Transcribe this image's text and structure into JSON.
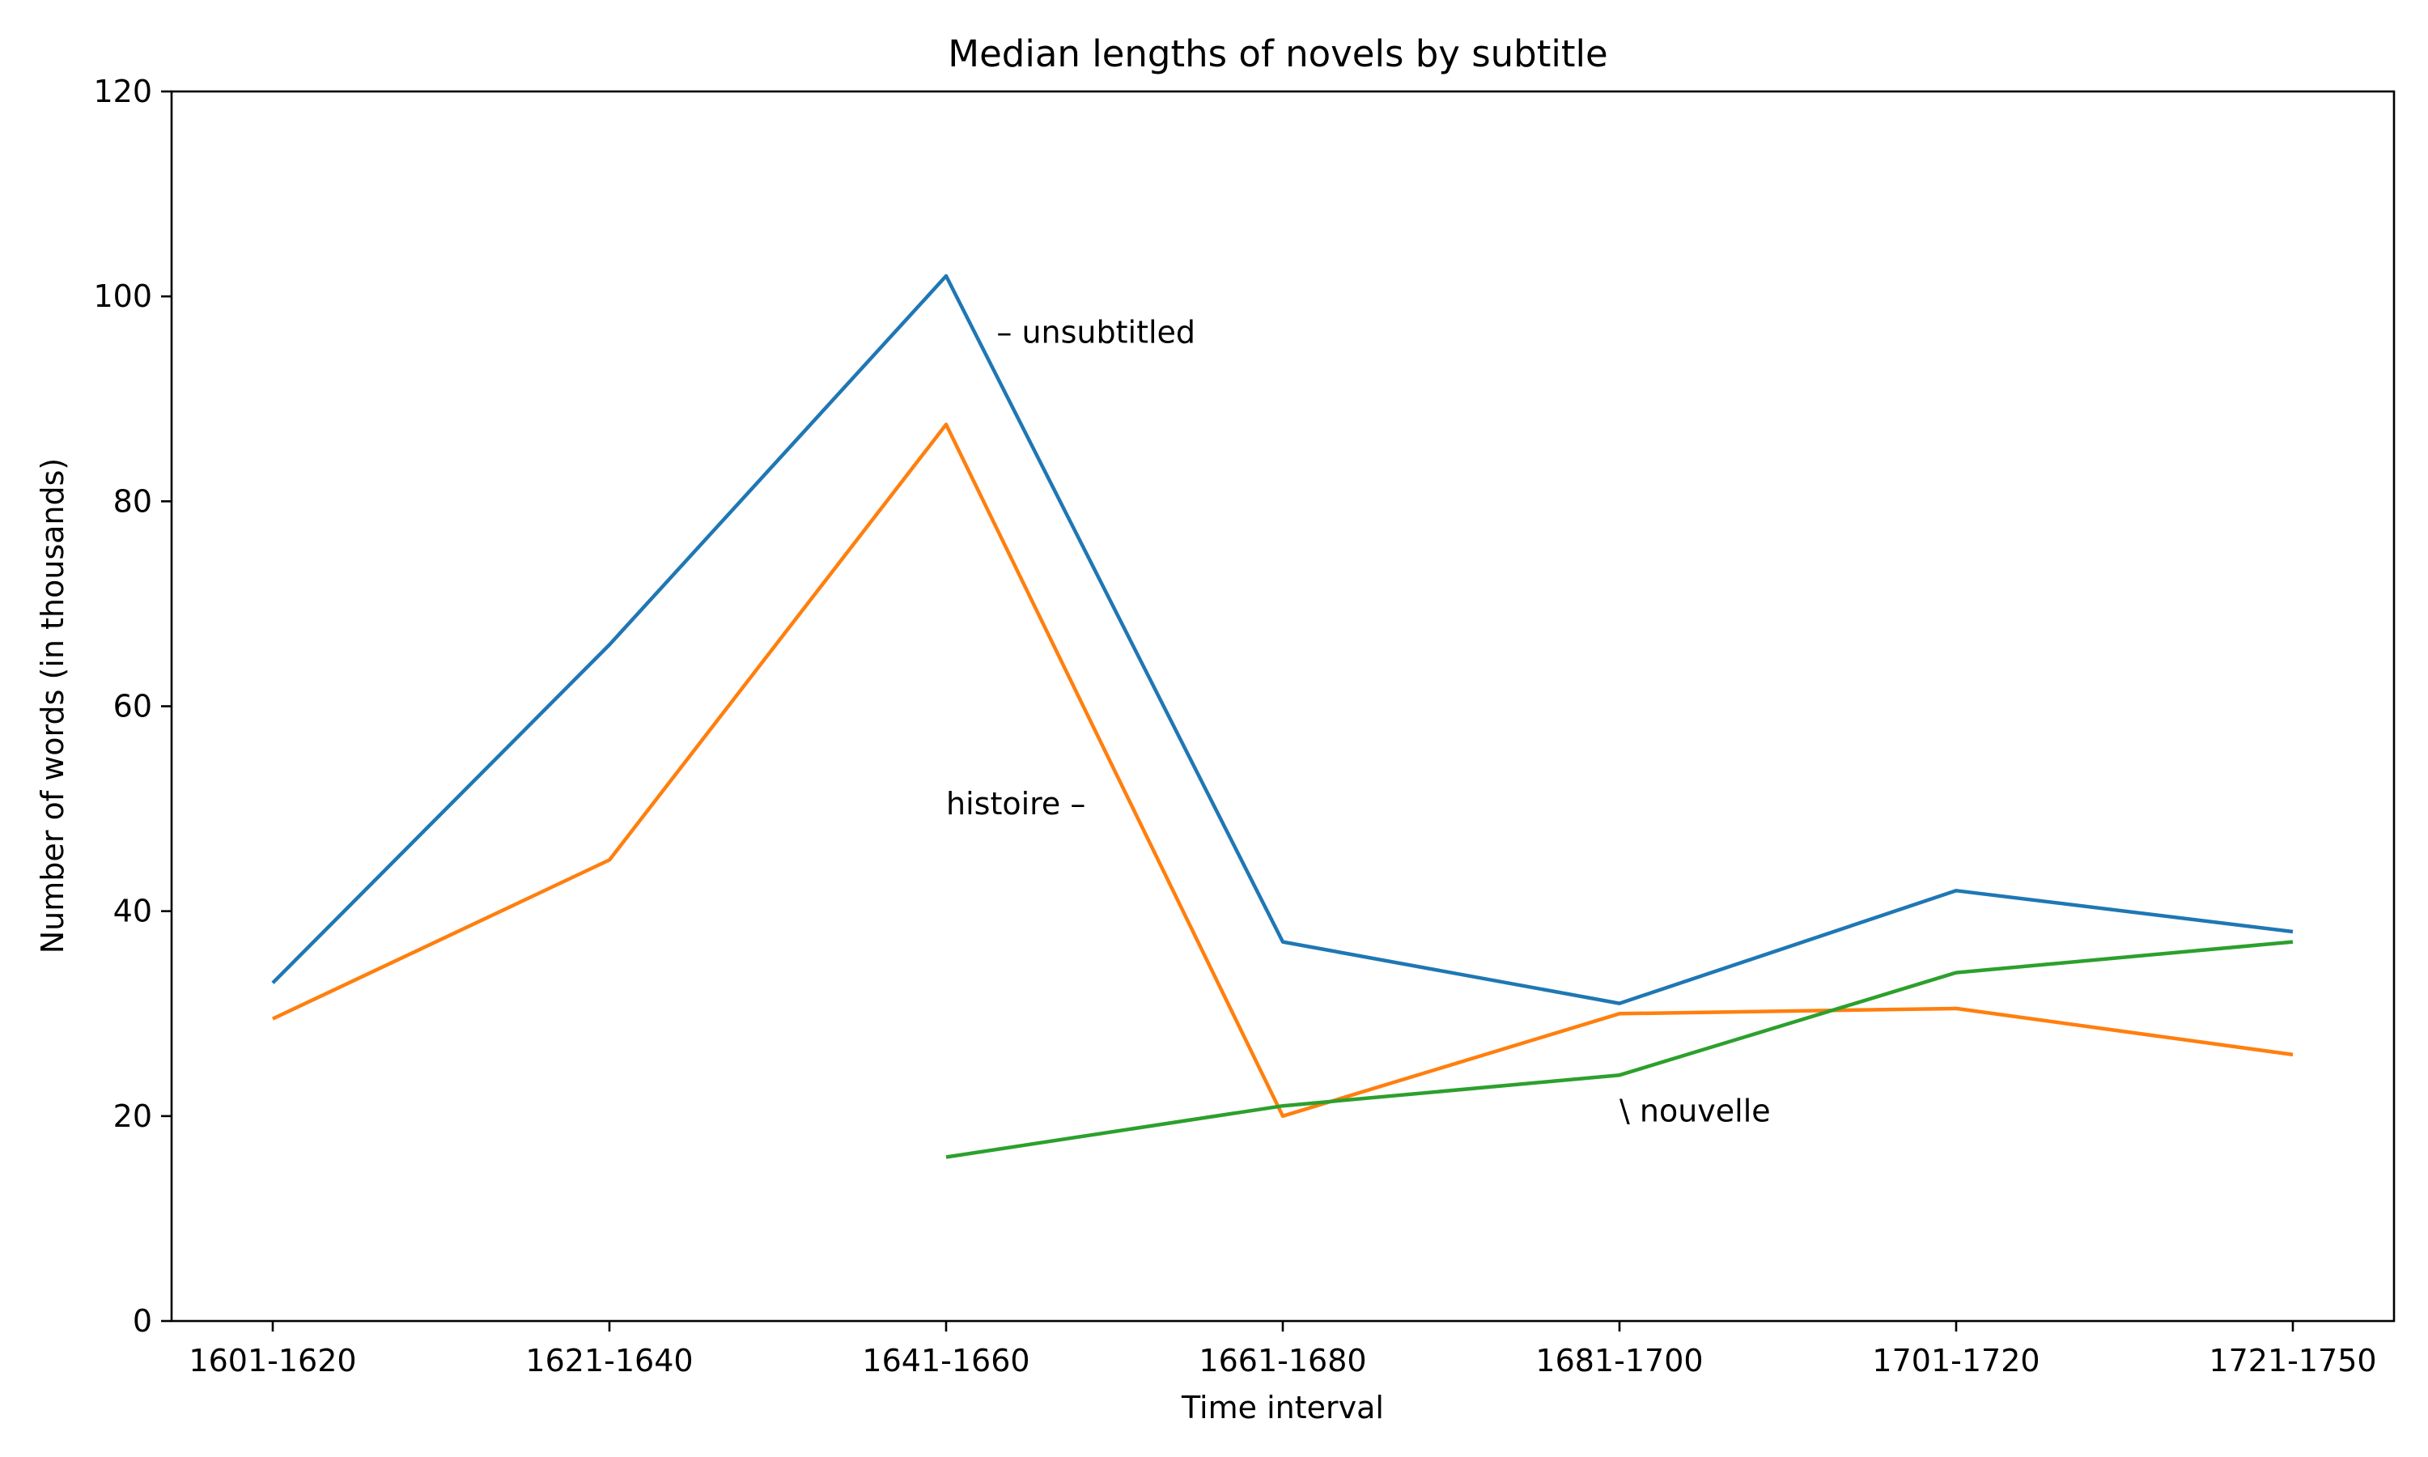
{
  "chart_data": {
    "type": "line",
    "title": "Median lengths of novels by subtitle",
    "xlabel": "Time interval",
    "ylabel": "Number of words (in thousands)",
    "categories": [
      "1601-1620",
      "1621-1640",
      "1641-1660",
      "1661-1680",
      "1681-1700",
      "1701-1720",
      "1721-1750"
    ],
    "ylim": [
      0,
      120
    ],
    "yticks": [
      0,
      20,
      40,
      60,
      80,
      100,
      120
    ],
    "grid": false,
    "series": [
      {
        "color": "#1f77b4",
        "values": [
          33,
          66,
          102,
          37,
          31,
          42,
          38
        ]
      },
      {
        "color": "#ff7f0e",
        "values": [
          29.5,
          45,
          87.5,
          20,
          30,
          30.5,
          26
        ]
      },
      {
        "color": "#2ca02c",
        "values": [
          null,
          null,
          16,
          21,
          24,
          34,
          37
        ]
      }
    ],
    "annotations": [
      {
        "text": "– unsubtitled",
        "x": "1641-1660",
        "x_offset": 0.15,
        "y": 96.5,
        "anchor": "start"
      },
      {
        "text": "histoire –",
        "x": "1641-1660",
        "x_offset": 0,
        "y": 50.5,
        "anchor": "start"
      },
      {
        "text": "\\ nouvelle",
        "x": "1681-1700",
        "x_offset": 0,
        "y": 20.5,
        "anchor": "start"
      }
    ]
  }
}
